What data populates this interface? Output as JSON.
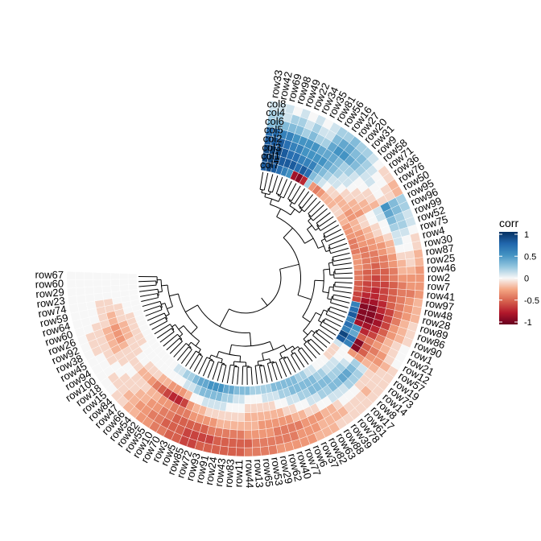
{
  "chart_data": {
    "type": "heatmap",
    "layout": "circular",
    "legend": {
      "title": "corr",
      "ticks": [
        1,
        0.5,
        0,
        -0.5,
        -1
      ],
      "position": "right"
    },
    "colors": {
      "low": "#67001f",
      "mid": "#f7f7f7",
      "high": "#053061"
    },
    "columns": [
      "col8",
      "col4",
      "col6",
      "col5",
      "col2",
      "col3",
      "col1",
      "col7"
    ],
    "rows": [
      "row33",
      "row42",
      "row69",
      "row98",
      "row49",
      "row22",
      "row34",
      "row35",
      "row81",
      "row56",
      "row16",
      "row27",
      "row20",
      "row31",
      "row9",
      "row58",
      "row71",
      "row36",
      "row76",
      "row50",
      "row95",
      "row96",
      "row99",
      "row52",
      "row75",
      "row4",
      "row30",
      "row87",
      "row25",
      "row46",
      "row2",
      "row7",
      "row41",
      "row97",
      "row48",
      "row28",
      "row89",
      "row86",
      "row90",
      "row1",
      "row21",
      "row12",
      "row57",
      "row19",
      "row73",
      "row14",
      "row8",
      "row17",
      "row61",
      "row78",
      "row39",
      "row88",
      "row63",
      "row82",
      "row37",
      "row6",
      "row77",
      "row40",
      "row62",
      "row29",
      "row53",
      "row65",
      "row13",
      "row44",
      "row11",
      "row83",
      "row43",
      "row24",
      "row91",
      "row93",
      "row72",
      "row85",
      "row5",
      "row3",
      "row70",
      "row10",
      "row55",
      "row82",
      "row54",
      "row66",
      "row47",
      "row84",
      "row15",
      "row18",
      "row100",
      "row94",
      "row45",
      "row38",
      "row92",
      "row26",
      "row60",
      "row64",
      "row59",
      "row74",
      "row23",
      "row29",
      "row60",
      "row67"
    ],
    "row_groups": {
      "description": "correlation values per row, columns ordered col8..col7 (outer to inner ring)",
      "values": [
        [
          0.1,
          0.2,
          0.3,
          0.7,
          0.8,
          0.9,
          0.9,
          0.8
        ],
        [
          0.1,
          0.2,
          0.3,
          0.7,
          0.8,
          0.9,
          0.9,
          0.9
        ],
        [
          0.1,
          0.1,
          0.3,
          0.6,
          0.8,
          0.9,
          0.9,
          0.8
        ],
        [
          0.0,
          0.2,
          0.3,
          0.6,
          0.7,
          0.8,
          0.8,
          0.7
        ],
        [
          0.1,
          0.2,
          0.3,
          0.5,
          0.6,
          0.7,
          0.8,
          0.6
        ],
        [
          0.0,
          0.1,
          0.2,
          0.5,
          0.6,
          0.7,
          0.8,
          0.5
        ],
        [
          0.1,
          0.2,
          0.3,
          0.5,
          0.5,
          0.6,
          0.7,
          -0.8
        ],
        [
          0.0,
          0.1,
          0.2,
          0.5,
          0.5,
          0.6,
          0.8,
          -0.9
        ],
        [
          0.1,
          0.1,
          0.2,
          0.4,
          0.5,
          0.6,
          0.7,
          -0.7
        ],
        [
          0.2,
          0.3,
          0.4,
          0.4,
          0.5,
          0.4,
          0.3,
          0.2
        ],
        [
          0.2,
          0.4,
          0.5,
          0.4,
          0.4,
          0.3,
          0.2,
          -0.3
        ],
        [
          0.3,
          0.4,
          0.5,
          0.3,
          0.3,
          0.2,
          0.1,
          -0.4
        ],
        [
          0.2,
          0.3,
          0.4,
          0.2,
          0.2,
          0.1,
          0.0,
          -0.3
        ],
        [
          0.2,
          0.3,
          0.3,
          0.2,
          0.1,
          0.1,
          -0.1,
          -0.2
        ],
        [
          0.1,
          0.2,
          0.2,
          0.1,
          0.1,
          0.0,
          -0.1,
          -0.2
        ],
        [
          0.0,
          0.1,
          0.1,
          0.0,
          0.0,
          -0.1,
          -0.2,
          -0.2
        ],
        [
          -0.1,
          0.0,
          0.1,
          0.0,
          -0.1,
          -0.1,
          -0.2,
          -0.1
        ],
        [
          -0.1,
          0.0,
          0.0,
          -0.1,
          -0.1,
          -0.2,
          -0.2,
          -0.1
        ],
        [
          -0.2,
          -0.1,
          0.0,
          -0.1,
          -0.2,
          -0.2,
          -0.3,
          -0.2
        ],
        [
          -0.2,
          -0.1,
          -0.1,
          -0.2,
          -0.2,
          -0.3,
          -0.3,
          -0.2
        ],
        [
          0.2,
          0.3,
          0.5,
          0.1,
          0.0,
          -0.1,
          -0.2,
          -0.3
        ],
        [
          0.2,
          0.3,
          0.4,
          0.1,
          0.0,
          -0.1,
          -0.2,
          -0.3
        ],
        [
          0.1,
          0.2,
          0.3,
          0.0,
          -0.1,
          -0.2,
          -0.3,
          -0.3
        ],
        [
          0.1,
          0.2,
          0.2,
          0.0,
          -0.1,
          -0.2,
          -0.3,
          -0.4
        ],
        [
          0.0,
          0.1,
          0.1,
          -0.1,
          -0.2,
          -0.3,
          -0.3,
          -0.4
        ],
        [
          -0.1,
          0.0,
          0.1,
          -0.2,
          -0.3,
          -0.3,
          -0.4,
          -0.4
        ],
        [
          -0.1,
          0.0,
          0.0,
          -0.2,
          -0.3,
          -0.4,
          -0.4,
          -0.3
        ],
        [
          -0.2,
          -0.1,
          -0.1,
          -0.3,
          -0.4,
          -0.4,
          -0.4,
          -0.3
        ],
        [
          -0.2,
          -0.1,
          -0.2,
          -0.3,
          -0.4,
          -0.5,
          -0.4,
          -0.3
        ],
        [
          -0.3,
          -0.2,
          -0.2,
          -0.4,
          -0.5,
          -0.5,
          -0.5,
          -0.4
        ],
        [
          -0.3,
          -0.3,
          -0.3,
          -0.4,
          -0.5,
          -0.6,
          -0.5,
          -0.4
        ],
        [
          -0.3,
          -0.3,
          -0.4,
          -0.5,
          -0.6,
          -0.6,
          -0.6,
          -0.5
        ],
        [
          -0.3,
          -0.4,
          -0.4,
          -0.5,
          -0.6,
          -0.7,
          -0.6,
          -0.5
        ],
        [
          -0.2,
          -0.3,
          -0.4,
          -0.5,
          -0.6,
          -0.7,
          -0.7,
          -0.6
        ],
        [
          -0.2,
          -0.3,
          -0.4,
          -0.5,
          -0.7,
          -0.8,
          -0.8,
          -0.6
        ],
        [
          -0.2,
          -0.3,
          -0.4,
          -0.6,
          -0.7,
          -0.9,
          -0.9,
          0.6
        ],
        [
          -0.1,
          -0.2,
          -0.4,
          -0.6,
          -0.8,
          -0.9,
          -0.9,
          0.7
        ],
        [
          -0.1,
          -0.2,
          -0.3,
          -0.6,
          -0.8,
          -0.9,
          -0.9,
          0.8
        ],
        [
          -0.1,
          -0.2,
          -0.3,
          -0.5,
          -0.7,
          -0.8,
          -0.8,
          0.6
        ],
        [
          0.0,
          -0.1,
          -0.2,
          -0.4,
          -0.6,
          -0.7,
          0.5,
          0.7
        ],
        [
          0.0,
          -0.1,
          -0.2,
          -0.3,
          -0.4,
          -0.5,
          0.4,
          0.6
        ],
        [
          0.0,
          -0.1,
          -0.3,
          -0.4,
          -0.5,
          -0.9,
          0.7,
          0.9
        ],
        [
          -0.1,
          -0.2,
          -0.3,
          -0.3,
          -0.5,
          -0.9,
          0.6,
          0.8
        ],
        [
          -0.1,
          -0.1,
          -0.2,
          -0.2,
          -0.3,
          -0.3,
          0.0,
          0.1
        ],
        [
          -0.1,
          -0.1,
          -0.1,
          0.1,
          0.2,
          0.0,
          0.0,
          -0.1
        ],
        [
          -0.1,
          -0.1,
          -0.1,
          0.2,
          0.3,
          0.1,
          0.0,
          -0.1
        ],
        [
          -0.1,
          -0.2,
          -0.1,
          0.2,
          0.4,
          0.2,
          0.1,
          -0.1
        ],
        [
          -0.1,
          -0.1,
          0.0,
          0.2,
          0.4,
          0.2,
          0.1,
          0.0
        ],
        [
          -0.1,
          -0.1,
          0.0,
          0.1,
          0.3,
          0.2,
          0.1,
          0.0
        ],
        [
          -0.1,
          -0.1,
          0.0,
          0.1,
          0.3,
          0.3,
          0.2,
          0.0
        ],
        [
          -0.1,
          -0.2,
          -0.1,
          0.1,
          0.2,
          0.3,
          0.2,
          0.1
        ],
        [
          -0.1,
          -0.2,
          -0.2,
          0.0,
          0.2,
          0.3,
          0.3,
          0.1
        ],
        [
          -0.2,
          -0.2,
          -0.2,
          0.0,
          0.1,
          0.3,
          0.3,
          0.2
        ],
        [
          -0.2,
          -0.2,
          -0.3,
          -0.1,
          0.1,
          0.2,
          0.3,
          0.2
        ],
        [
          -0.2,
          -0.3,
          -0.3,
          -0.1,
          0.0,
          0.2,
          0.3,
          0.3
        ],
        [
          -0.3,
          -0.3,
          -0.3,
          -0.2,
          0.0,
          0.1,
          0.3,
          0.3
        ],
        [
          -0.3,
          -0.3,
          -0.4,
          -0.2,
          -0.1,
          0.1,
          0.2,
          0.3
        ],
        [
          -0.3,
          -0.4,
          -0.4,
          -0.3,
          -0.1,
          0.0,
          0.2,
          0.3
        ],
        [
          -0.3,
          -0.4,
          -0.4,
          -0.3,
          -0.2,
          0.0,
          0.1,
          0.3
        ],
        [
          -0.3,
          -0.4,
          -0.4,
          -0.3,
          -0.2,
          -0.1,
          0.1,
          0.2
        ],
        [
          -0.4,
          -0.4,
          -0.3,
          -0.3,
          -0.2,
          -0.1,
          0.1,
          0.2
        ],
        [
          -0.4,
          -0.4,
          -0.3,
          -0.3,
          -0.2,
          -0.1,
          0.0,
          0.2
        ],
        [
          -0.4,
          -0.4,
          -0.3,
          -0.2,
          -0.2,
          -0.1,
          0.0,
          0.2
        ],
        [
          -0.4,
          -0.5,
          -0.3,
          -0.2,
          -0.2,
          -0.1,
          0.0,
          0.3
        ],
        [
          -0.5,
          -0.5,
          -0.4,
          -0.2,
          -0.1,
          0.0,
          0.1,
          0.3
        ],
        [
          -0.5,
          -0.5,
          -0.4,
          -0.2,
          -0.1,
          0.0,
          0.1,
          0.3
        ],
        [
          -0.5,
          -0.5,
          -0.4,
          -0.2,
          -0.1,
          0.0,
          0.2,
          0.4
        ],
        [
          -0.5,
          -0.5,
          -0.4,
          -0.2,
          -0.1,
          0.1,
          0.2,
          0.4
        ],
        [
          -0.5,
          -0.6,
          -0.4,
          -0.3,
          -0.1,
          0.1,
          0.3,
          0.5
        ],
        [
          -0.5,
          -0.6,
          -0.5,
          -0.3,
          -0.1,
          0.1,
          0.3,
          0.5
        ],
        [
          -0.6,
          -0.6,
          -0.5,
          -0.3,
          -0.2,
          0.1,
          0.3,
          0.5
        ],
        [
          -0.6,
          -0.6,
          -0.5,
          -0.3,
          -0.2,
          0.0,
          0.3,
          0.4
        ],
        [
          -0.5,
          -0.5,
          -0.5,
          -0.4,
          -0.3,
          0.0,
          0.2,
          0.4
        ],
        [
          -0.5,
          -0.5,
          -0.5,
          -0.4,
          -0.6,
          -0.2,
          0.1,
          0.3
        ],
        [
          -0.4,
          -0.5,
          -0.4,
          -0.4,
          -0.7,
          -0.3,
          0.1,
          0.2
        ],
        [
          -0.4,
          -0.4,
          -0.4,
          -0.3,
          -0.7,
          -0.3,
          0.0,
          0.2
        ],
        [
          -0.3,
          -0.4,
          -0.3,
          -0.3,
          -0.6,
          -0.3,
          0.0,
          0.1
        ],
        [
          -0.3,
          -0.3,
          -0.3,
          -0.2,
          -0.5,
          -0.2,
          0.0,
          0.1
        ],
        [
          -0.2,
          -0.3,
          -0.2,
          -0.2,
          -0.4,
          -0.2,
          0.0,
          0.0
        ],
        [
          -0.2,
          -0.2,
          -0.2,
          -0.1,
          -0.3,
          -0.1,
          0.0,
          0.0
        ],
        [
          -0.1,
          -0.2,
          -0.1,
          -0.1,
          -0.2,
          -0.1,
          0.0,
          0.0
        ],
        [
          -0.1,
          -0.1,
          -0.1,
          -0.1,
          -0.2,
          -0.1,
          0.0,
          0.0
        ],
        [
          0.0,
          -0.1,
          -0.1,
          0.0,
          -0.1,
          0.0,
          0.0,
          0.0
        ],
        [
          0.0,
          -0.1,
          0.0,
          0.0,
          -0.1,
          0.0,
          0.0,
          0.0
        ],
        [
          0.0,
          0.0,
          0.0,
          -0.1,
          -0.1,
          -0.1,
          0.0,
          0.0
        ],
        [
          0.0,
          0.0,
          -0.1,
          -0.1,
          -0.1,
          -0.1,
          -0.1,
          0.0
        ],
        [
          0.0,
          0.0,
          -0.1,
          -0.2,
          -0.2,
          -0.1,
          -0.1,
          0.0
        ],
        [
          0.0,
          -0.1,
          -0.1,
          -0.2,
          -0.3,
          -0.2,
          -0.1,
          0.0
        ],
        [
          0.0,
          -0.1,
          -0.1,
          -0.2,
          -0.3,
          -0.2,
          -0.1,
          0.0
        ],
        [
          0.0,
          -0.1,
          -0.1,
          -0.2,
          -0.3,
          -0.2,
          -0.1,
          0.0
        ],
        [
          0.0,
          0.0,
          -0.1,
          -0.1,
          -0.2,
          -0.1,
          -0.1,
          0.0
        ],
        [
          0.0,
          0.0,
          0.0,
          -0.1,
          -0.2,
          -0.1,
          0.0,
          0.0
        ],
        [
          0.0,
          0.0,
          0.0,
          -0.1,
          -0.1,
          -0.1,
          0.0,
          0.0
        ],
        [
          0.0,
          0.0,
          0.0,
          -0.1,
          -0.1,
          0.0,
          0.0,
          0.0
        ],
        [
          0.0,
          0.0,
          0.0,
          0.0,
          0.0,
          0.0,
          0.0,
          0.0
        ],
        [
          0.0,
          0.0,
          0.0,
          0.0,
          0.0,
          0.0,
          0.0,
          0.0
        ],
        [
          0.0,
          0.0,
          0.0,
          0.0,
          0.0,
          0.0,
          0.0,
          0.0
        ],
        [
          0.0,
          0.0,
          0.0,
          0.0,
          0.0,
          0.0,
          0.0,
          0.0
        ]
      ]
    }
  }
}
